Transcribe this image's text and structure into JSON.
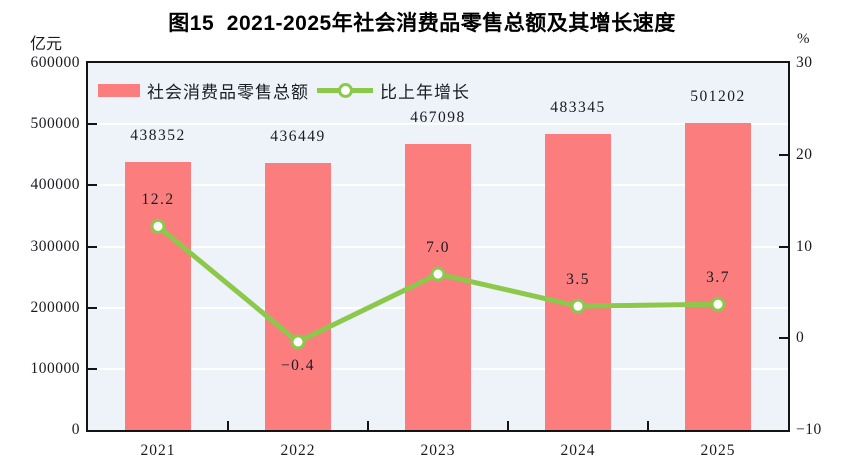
{
  "chart_data": {
    "type": "bar",
    "subtype": "bar-line-combo",
    "title": "图15  2021-2025年社会消费品零售总额及其增长速度",
    "categories": [
      "2021",
      "2022",
      "2023",
      "2024",
      "2025"
    ],
    "series": [
      {
        "name": "社会消费品零售总额",
        "type": "bar",
        "axis": "left",
        "color": "#FB7D7D",
        "values": [
          438352,
          436449,
          467098,
          483345,
          501202
        ],
        "labels": [
          "438352",
          "436449",
          "467098",
          "483345",
          "501202"
        ]
      },
      {
        "name": "比上年增长",
        "type": "line",
        "axis": "right",
        "color": "#8CC84B",
        "marker": "open-circle-white-fill",
        "values": [
          12.2,
          -0.4,
          7.0,
          3.5,
          3.7
        ],
        "labels": [
          "12.2",
          "−0.4",
          "7.0",
          "3.5",
          "3.7"
        ]
      }
    ],
    "left_axis": {
      "unit": "亿元",
      "min": 0,
      "max": 600000,
      "tick_values": [
        0,
        100000,
        200000,
        300000,
        400000,
        500000,
        600000
      ],
      "tick_labels": [
        "0",
        "100000",
        "200000",
        "300000",
        "400000",
        "500000",
        "600000"
      ]
    },
    "right_axis": {
      "unit": "%",
      "min": -10,
      "max": 30,
      "tick_values": [
        -10,
        0,
        10,
        20,
        30
      ],
      "tick_labels": [
        "−10",
        "0",
        "10",
        "20",
        "30"
      ],
      "inner_tick_values": [
        0,
        10,
        20
      ]
    },
    "legend_position": "top-left-inside",
    "grid": "horizontal-white-lines",
    "plot_bg": "#EDF3F8",
    "axis_border_color": "#141414",
    "text_color": "#1b1b22"
  }
}
